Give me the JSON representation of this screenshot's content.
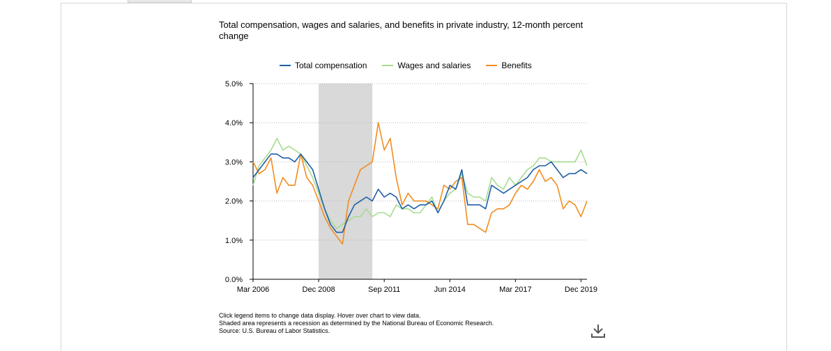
{
  "chart_data": {
    "type": "line",
    "title": "Total compensation, wages and salaries, and benefits in private industry, 12-month percent change",
    "x_tick_labels": [
      "Mar 2006",
      "Dec 2008",
      "Sep 2011",
      "Jun 2014",
      "Mar 2017",
      "Dec 2019"
    ],
    "y_tick_labels": [
      "0.0%",
      "1.0%",
      "2.0%",
      "3.0%",
      "4.0%",
      "5.0%"
    ],
    "ylim": [
      0,
      5
    ],
    "grid": "horizontal dotted",
    "legend_position": "top-center",
    "recession_shading": {
      "start_quarter_index": 11,
      "end_quarter_index": 20
    },
    "series": [
      {
        "name": "Total compensation",
        "color": "#1f5fa6",
        "values": [
          2.6,
          2.8,
          3.0,
          3.2,
          3.2,
          3.1,
          3.1,
          3.0,
          3.2,
          3.0,
          2.8,
          2.3,
          1.8,
          1.4,
          1.2,
          1.2,
          1.6,
          1.9,
          2.0,
          2.1,
          2.0,
          2.3,
          2.1,
          2.2,
          2.1,
          1.8,
          1.9,
          1.8,
          1.9,
          1.9,
          2.0,
          1.7,
          2.0,
          2.4,
          2.3,
          2.8,
          1.9,
          1.9,
          1.9,
          1.8,
          2.4,
          2.3,
          2.2,
          2.3,
          2.4,
          2.5,
          2.6,
          2.8,
          2.9,
          2.9,
          3.0,
          2.8,
          2.6,
          2.7,
          2.7,
          2.8,
          2.7
        ]
      },
      {
        "name": "Wages and salaries",
        "color": "#a6dc8f",
        "values": [
          2.4,
          2.9,
          3.1,
          3.3,
          3.6,
          3.3,
          3.4,
          3.3,
          3.2,
          2.9,
          2.6,
          2.2,
          1.8,
          1.5,
          1.3,
          1.4,
          1.5,
          1.6,
          1.6,
          1.8,
          1.6,
          1.7,
          1.7,
          1.6,
          1.9,
          1.8,
          1.8,
          1.7,
          1.7,
          1.9,
          2.1,
          1.7,
          2.0,
          2.2,
          2.3,
          2.7,
          2.2,
          2.1,
          2.1,
          2.0,
          2.6,
          2.4,
          2.3,
          2.6,
          2.4,
          2.6,
          2.8,
          2.9,
          3.1,
          3.1,
          3.0,
          3.0,
          3.0,
          3.0,
          3.0,
          3.3,
          2.9
        ]
      },
      {
        "name": "Benefits",
        "color": "#f28c1e",
        "values": [
          3.0,
          2.7,
          2.8,
          3.1,
          2.2,
          2.6,
          2.4,
          2.4,
          3.2,
          2.6,
          2.4,
          2.0,
          1.6,
          1.3,
          1.1,
          0.9,
          2.0,
          2.4,
          2.8,
          2.9,
          3.0,
          4.0,
          3.3,
          3.6,
          2.6,
          1.9,
          2.2,
          2.0,
          2.0,
          2.0,
          1.9,
          1.8,
          2.4,
          2.3,
          2.5,
          2.6,
          1.4,
          1.4,
          1.3,
          1.2,
          1.7,
          1.8,
          1.8,
          1.9,
          2.2,
          2.4,
          2.3,
          2.5,
          2.8,
          2.5,
          2.6,
          2.4,
          1.8,
          2.0,
          1.9,
          1.6,
          2.0
        ]
      }
    ]
  },
  "notes": [
    "Click legend items to change data display. Hover over chart to view data.",
    "Shaded area represents a recession as determined by the National Bureau of Economic Research.",
    "Source: U.S. Bureau of Labor Statistics."
  ],
  "icons": {
    "download": "download-icon"
  }
}
